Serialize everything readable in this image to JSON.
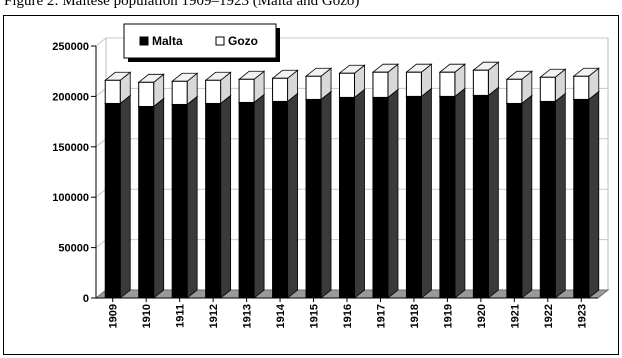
{
  "caption": "Figure 2: Maltese population 1909–1923 (Malta and Gozo)",
  "chart_data": {
    "type": "bar",
    "stacked": true,
    "three_d": true,
    "title": "",
    "xlabel": "",
    "ylabel": "",
    "categories": [
      "1909",
      "1910",
      "1911",
      "1912",
      "1913",
      "1914",
      "1915",
      "1916",
      "1917",
      "1918",
      "1919",
      "1920",
      "1921",
      "1922",
      "1923"
    ],
    "series": [
      {
        "name": "Malta",
        "color": "#000000",
        "values": [
          193000,
          190000,
          192000,
          193000,
          194000,
          195000,
          197000,
          199000,
          199000,
          200000,
          200000,
          201000,
          193000,
          195000,
          197000
        ]
      },
      {
        "name": "Gozo",
        "color": "#ffffff",
        "values": [
          23000,
          24000,
          23000,
          23000,
          23000,
          23000,
          23000,
          24000,
          25000,
          24000,
          24000,
          25000,
          24000,
          24000,
          23000
        ]
      }
    ],
    "ylim": [
      0,
      250000
    ],
    "yticks": [
      0,
      50000,
      100000,
      150000,
      200000,
      250000
    ],
    "grid": true,
    "legend_position": "top-left"
  }
}
